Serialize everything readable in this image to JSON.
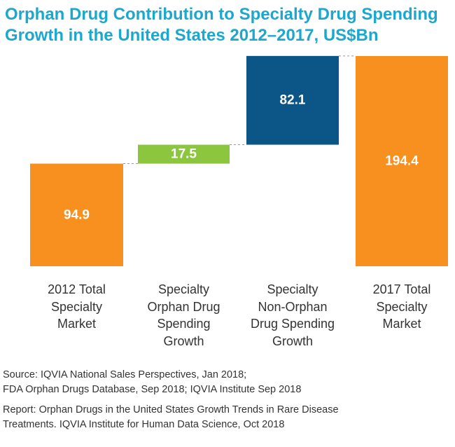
{
  "title_lines": [
    "Orphan Drug Contribution to Specialty Drug Spending",
    "Growth in the United States 2012–2017, US$Bn"
  ],
  "chart_data": {
    "type": "bar",
    "subtype": "waterfall",
    "title": "Orphan Drug Contribution to Specialty Drug Spending Growth in the United States 2012–2017, US$Bn",
    "categories": [
      [
        "2012 Total",
        "Specialty",
        "Market"
      ],
      [
        "Specialty",
        "Orphan Drug",
        "Spending",
        "Growth"
      ],
      [
        "Specialty",
        "Non-Orphan",
        "Drug Spending",
        "Growth"
      ],
      [
        "2017 Total",
        "Specialty",
        "Market"
      ]
    ],
    "values": [
      94.9,
      17.5,
      82.1,
      194.4
    ],
    "value_labels": [
      "94.9",
      "17.5",
      "82.1",
      "194.4"
    ],
    "bar_kinds": [
      "total",
      "increment",
      "increment",
      "total"
    ],
    "ylim": [
      0,
      194.4
    ],
    "grid": false,
    "colors": [
      "#f7901e",
      "#8cc63f",
      "#0b5686",
      "#f7901e"
    ],
    "connector_color": "#999999",
    "label_color": "#ffffff",
    "xlabel": "",
    "ylabel": ""
  },
  "footnotes": [
    "Source: IQVIA National Sales Perspectives, Jan 2018;",
    "FDA Orphan Drugs Database, Sep 2018; IQVIA Institute Sep 2018",
    "Report: Orphan Drugs in the United States Growth Trends in Rare Disease",
    "Treatments. IQVIA Institute for Human Data Science, Oct 2018"
  ]
}
